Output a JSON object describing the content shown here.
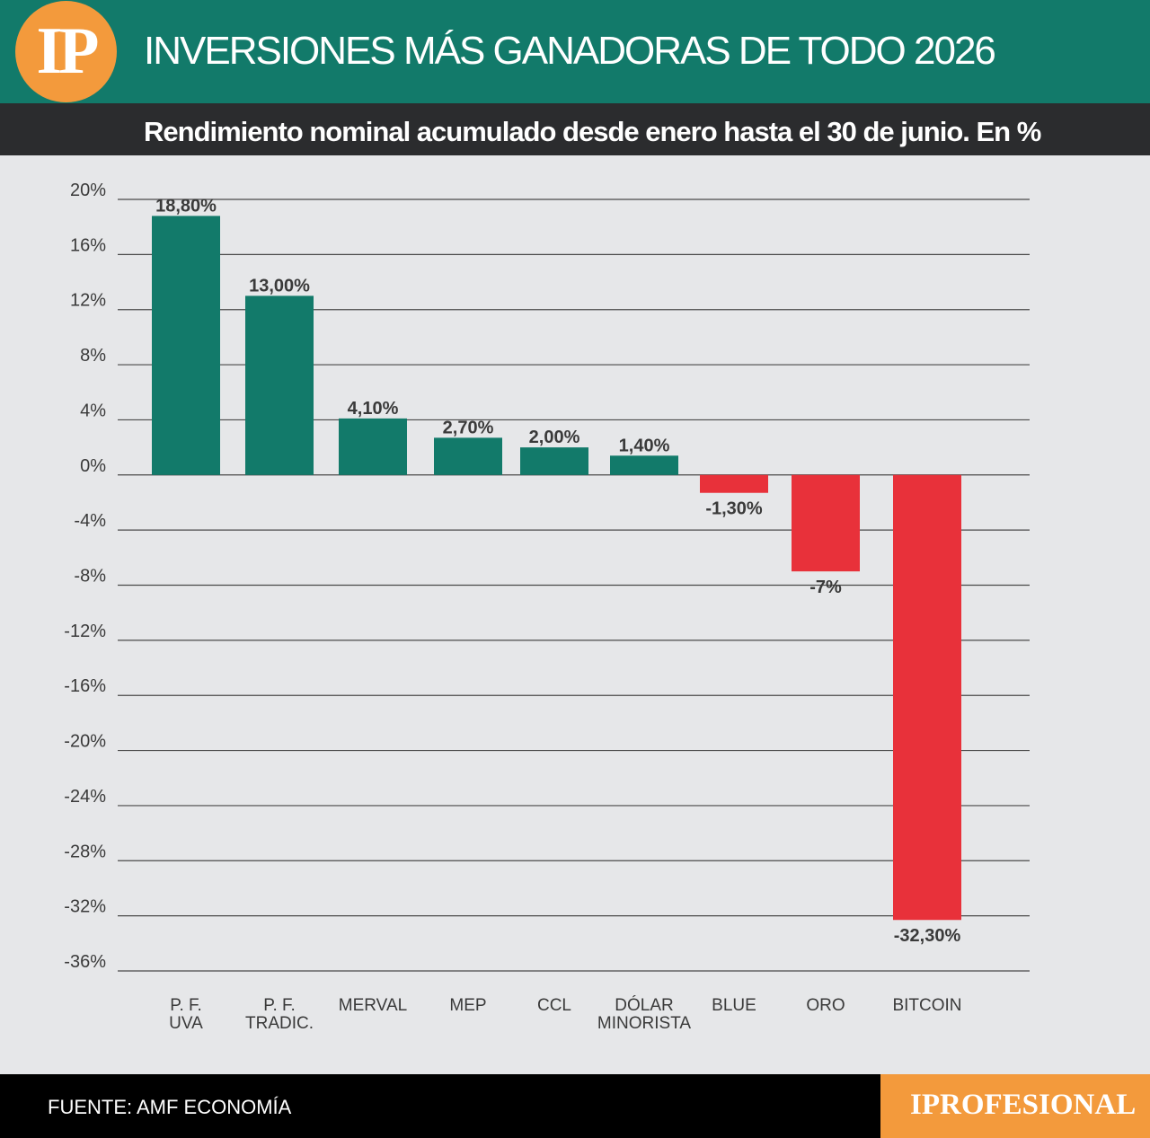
{
  "header": {
    "logo_text": "IP",
    "title": "INVERSIONES MÁS GANADORAS DE TODO 2026",
    "subtitle": "Rendimiento nominal acumulado desde enero hasta el 30 de junio. En %"
  },
  "footer": {
    "source": "FUENTE: AMF ECONOMÍA",
    "brand": "IPROFESIONAL"
  },
  "colors": {
    "positive": "#127a6a",
    "negative": "#e8313a",
    "header": "#127a6a",
    "subheader": "#2b2c2e",
    "accent": "#f39a3c"
  },
  "chart_data": {
    "type": "bar",
    "title": "INVERSIONES MÁS GANADORAS DE TODO 2026",
    "subtitle": "Rendimiento nominal acumulado desde enero hasta el 30 de junio. En %",
    "categories": [
      [
        "P. F.",
        "UVA"
      ],
      [
        "P. F.",
        "TRADIC."
      ],
      [
        "MERVAL"
      ],
      [
        "MEP"
      ],
      [
        "CCL"
      ],
      [
        "DÓLAR",
        "MINORISTA"
      ],
      [
        "BLUE"
      ],
      [
        "ORO"
      ],
      [
        "BITCOIN"
      ]
    ],
    "values": [
      18.8,
      13.0,
      4.1,
      2.7,
      2.0,
      1.4,
      -1.3,
      -7,
      -32.3
    ],
    "value_labels": [
      "18,80%",
      "13,00%",
      "4,10%",
      "2,70%",
      "2,00%",
      "1,40%",
      "-1,30%",
      "-7%",
      "-32,30%"
    ],
    "yticks": [
      20,
      16,
      12,
      8,
      4,
      0,
      -4,
      -8,
      -12,
      -16,
      -20,
      -24,
      -28,
      -32,
      -36
    ],
    "ytick_labels": [
      "20%",
      "16%",
      "12%",
      "8%",
      "4%",
      "0%",
      "-4%",
      "-8%",
      "-12%",
      "-16%",
      "-20%",
      "-24%",
      "-28%",
      "-32%",
      "-36%"
    ],
    "ylim": [
      -36,
      20
    ],
    "grid": true,
    "legend": "none"
  }
}
